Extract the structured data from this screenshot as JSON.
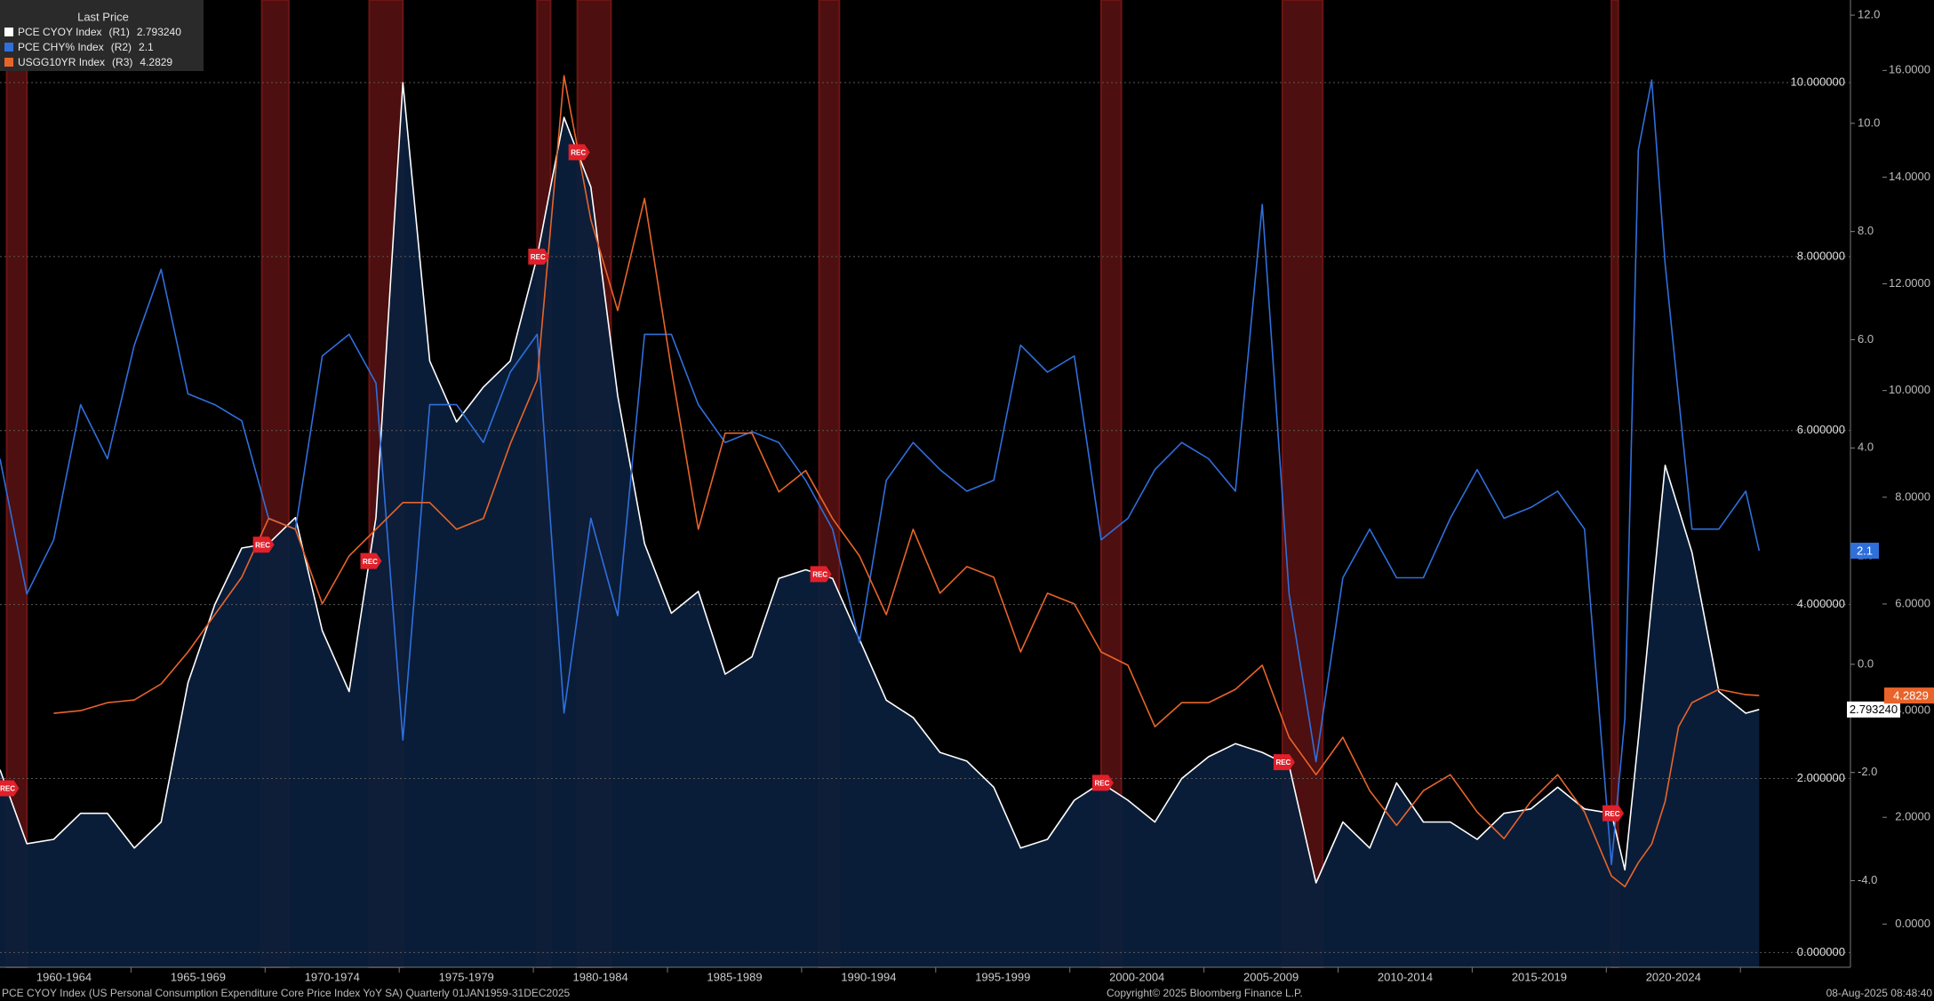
{
  "chart_data": {
    "type": "line",
    "legend_title": "Last Price",
    "recession_label": "REC",
    "source_note": "PCE CYOY Index (US Personal Consumption Expenditure Core Price Index YoY SA)  Quarterly 01JAN1959-31DEC2025",
    "copyright": "Copyright© 2025 Bloomberg Finance L.P.",
    "timestamp": "08-Aug-2025 08:48:40",
    "period_labels": [
      "1960-1964",
      "1965-1969",
      "1970-1974",
      "1975-1979",
      "1980-1984",
      "1985-1989",
      "1990-1994",
      "1995-1999",
      "2000-2004",
      "2005-2009",
      "2010-2014",
      "2015-2019",
      "2020-2024"
    ],
    "xlim": [
      1960,
      2028.9
    ],
    "grid": true,
    "ylim": [
      -0.17,
      10.95
    ],
    "yticks": [
      {
        "value": 0,
        "label": "0.000000"
      },
      {
        "value": 2,
        "label": "2.000000"
      },
      {
        "value": 4,
        "label": "4.000000"
      },
      {
        "value": 6,
        "label": "6.000000"
      },
      {
        "value": 8,
        "label": "8.000000"
      },
      {
        "value": 10,
        "label": "10.000000"
      }
    ],
    "y2lim": [
      -5.6,
      12.28
    ],
    "y2ticks": [
      {
        "value": -4,
        "label": "-4.0"
      },
      {
        "value": -2,
        "label": "-2.0"
      },
      {
        "value": 0,
        "label": "0.0"
      },
      {
        "value": 2,
        "label": "2.0"
      },
      {
        "value": 4,
        "label": "4.0"
      },
      {
        "value": 6,
        "label": "6.0"
      },
      {
        "value": 8,
        "label": "8.0"
      },
      {
        "value": 10,
        "label": "10.0"
      },
      {
        "value": 12,
        "label": "12.0"
      }
    ],
    "y3lim": [
      -0.81,
      17.32
    ],
    "y3ticks": [
      {
        "value": 0,
        "label": "0.0000"
      },
      {
        "value": 2,
        "label": "2.0000"
      },
      {
        "value": 4,
        "label": "4.0000"
      },
      {
        "value": 6,
        "label": "6.0000"
      },
      {
        "value": 8,
        "label": "8.0000"
      },
      {
        "value": 10,
        "label": "10.0000"
      },
      {
        "value": 12,
        "label": "12.0000"
      },
      {
        "value": 14,
        "label": "14.0000"
      },
      {
        "value": 16,
        "label": "16.0000"
      }
    ],
    "recessions": [
      [
        1960.25,
        1961.0
      ],
      [
        1969.75,
        1970.75
      ],
      [
        1973.75,
        1975.0
      ],
      [
        1980.0,
        1980.5
      ],
      [
        1981.5,
        1982.75
      ],
      [
        1990.5,
        1991.25
      ],
      [
        2001.0,
        2001.75
      ],
      [
        2007.75,
        2009.25
      ],
      [
        2020.0,
        2020.25
      ]
    ],
    "series": [
      {
        "name": "PCE CYOY Index",
        "axis_label": "(R1)",
        "axis": "y",
        "color": "#ffffff",
        "fill": "#0b1f3b",
        "last": {
          "value": 2.79324,
          "label": "2.793240"
        },
        "x": [
          1960,
          1961,
          1962,
          1963,
          1964,
          1965,
          1966,
          1967,
          1968,
          1969,
          1970,
          1971,
          1972,
          1973,
          1974,
          1975,
          1976,
          1977,
          1978,
          1979,
          1980,
          1981,
          1982,
          1983,
          1984,
          1985,
          1986,
          1987,
          1988,
          1989,
          1990,
          1991,
          1992,
          1993,
          1994,
          1995,
          1996,
          1997,
          1998,
          1999,
          2000,
          2001,
          2002,
          2003,
          2004,
          2005,
          2006,
          2007,
          2008,
          2009,
          2010,
          2011,
          2012,
          2013,
          2014,
          2015,
          2016,
          2017,
          2018,
          2019,
          2020,
          2020.5,
          2021,
          2022,
          2023,
          2024,
          2025,
          2025.5
        ],
        "values": [
          2.1,
          1.25,
          1.3,
          1.6,
          1.6,
          1.2,
          1.5,
          3.1,
          4.0,
          4.65,
          4.7,
          5.0,
          3.7,
          3.0,
          5.0,
          10.0,
          6.8,
          6.1,
          6.5,
          6.8,
          8.0,
          9.6,
          8.8,
          6.4,
          4.7,
          3.9,
          4.15,
          3.2,
          3.4,
          4.3,
          4.4,
          4.3,
          3.6,
          2.9,
          2.7,
          2.3,
          2.2,
          1.9,
          1.2,
          1.3,
          1.75,
          1.95,
          1.75,
          1.5,
          2.0,
          2.25,
          2.4,
          2.3,
          2.15,
          0.8,
          1.5,
          1.2,
          1.95,
          1.5,
          1.5,
          1.3,
          1.6,
          1.65,
          1.9,
          1.65,
          1.6,
          0.95,
          2.45,
          5.6,
          4.6,
          3.0,
          2.75,
          2.79324
        ]
      },
      {
        "name": "PCE CHY% Index",
        "axis_label": "(R2)",
        "axis": "y2",
        "color": "#2f6fdc",
        "last": {
          "value": 2.1,
          "label": "2.1"
        },
        "x": [
          1960,
          1961,
          1962,
          1963,
          1964,
          1965,
          1966,
          1967,
          1968,
          1969,
          1970,
          1971,
          1972,
          1973,
          1974,
          1975,
          1976,
          1977,
          1978,
          1979,
          1980,
          1981,
          1982,
          1983,
          1984,
          1985,
          1986,
          1987,
          1988,
          1989,
          1990,
          1991,
          1992,
          1993,
          1994,
          1995,
          1996,
          1997,
          1998,
          1999,
          2000,
          2001,
          2002,
          2003,
          2004,
          2005,
          2006,
          2007,
          2008,
          2009,
          2010,
          2011,
          2012,
          2013,
          2014,
          2015,
          2016,
          2017,
          2018,
          2019,
          2020,
          2020.5,
          2021,
          2021.5,
          2022,
          2023,
          2024,
          2025,
          2025.5
        ],
        "values": [
          3.8,
          1.3,
          2.3,
          4.8,
          3.8,
          5.9,
          7.3,
          5.0,
          4.8,
          4.5,
          2.7,
          2.5,
          5.7,
          6.1,
          5.2,
          -1.4,
          4.8,
          4.8,
          4.1,
          5.4,
          6.1,
          -0.9,
          2.7,
          0.9,
          6.1,
          6.1,
          4.8,
          4.1,
          4.3,
          4.1,
          3.4,
          2.5,
          0.4,
          3.4,
          4.1,
          3.6,
          3.2,
          3.4,
          5.9,
          5.4,
          5.7,
          2.3,
          2.7,
          3.6,
          4.1,
          3.8,
          3.2,
          8.5,
          1.3,
          -1.8,
          1.6,
          2.5,
          1.6,
          1.6,
          2.7,
          3.6,
          2.7,
          2.9,
          3.2,
          2.5,
          -3.7,
          -1.0,
          9.5,
          10.8,
          7.4,
          2.5,
          2.5,
          3.2,
          2.1
        ]
      },
      {
        "name": "USGG10YR Index",
        "axis_label": "(R3)",
        "axis": "y3",
        "color": "#e8642a",
        "last": {
          "value": 4.2829,
          "label": "4.2829"
        },
        "x": [
          1962,
          1963,
          1964,
          1965,
          1966,
          1967,
          1968,
          1969,
          1970,
          1971,
          1972,
          1973,
          1974,
          1975,
          1976,
          1977,
          1978,
          1979,
          1980,
          1981,
          1982,
          1983,
          1984,
          1985,
          1986,
          1987,
          1988,
          1989,
          1990,
          1991,
          1992,
          1993,
          1994,
          1995,
          1996,
          1997,
          1998,
          1999,
          2000,
          2001,
          2002,
          2003,
          2004,
          2005,
          2006,
          2007,
          2008,
          2009,
          2010,
          2011,
          2012,
          2013,
          2014,
          2015,
          2016,
          2017,
          2018,
          2019,
          2020,
          2020.5,
          2021,
          2021.5,
          2022,
          2022.5,
          2023,
          2024,
          2025,
          2025.5
        ],
        "values": [
          3.95,
          4.0,
          4.15,
          4.2,
          4.5,
          5.1,
          5.8,
          6.5,
          7.6,
          7.4,
          6.0,
          6.9,
          7.4,
          7.9,
          7.9,
          7.4,
          7.6,
          9.0,
          10.2,
          15.9,
          13.2,
          11.5,
          13.6,
          10.4,
          7.4,
          9.2,
          9.2,
          8.1,
          8.5,
          7.6,
          6.9,
          5.8,
          7.4,
          6.2,
          6.7,
          6.5,
          5.1,
          6.2,
          6.0,
          5.1,
          4.85,
          3.7,
          4.15,
          4.15,
          4.4,
          4.85,
          3.5,
          2.8,
          3.5,
          2.5,
          1.85,
          2.5,
          2.8,
          2.1,
          1.6,
          2.3,
          2.8,
          2.1,
          0.9,
          0.7,
          1.15,
          1.5,
          2.3,
          3.7,
          4.15,
          4.4,
          4.3,
          4.2829
        ]
      }
    ]
  }
}
